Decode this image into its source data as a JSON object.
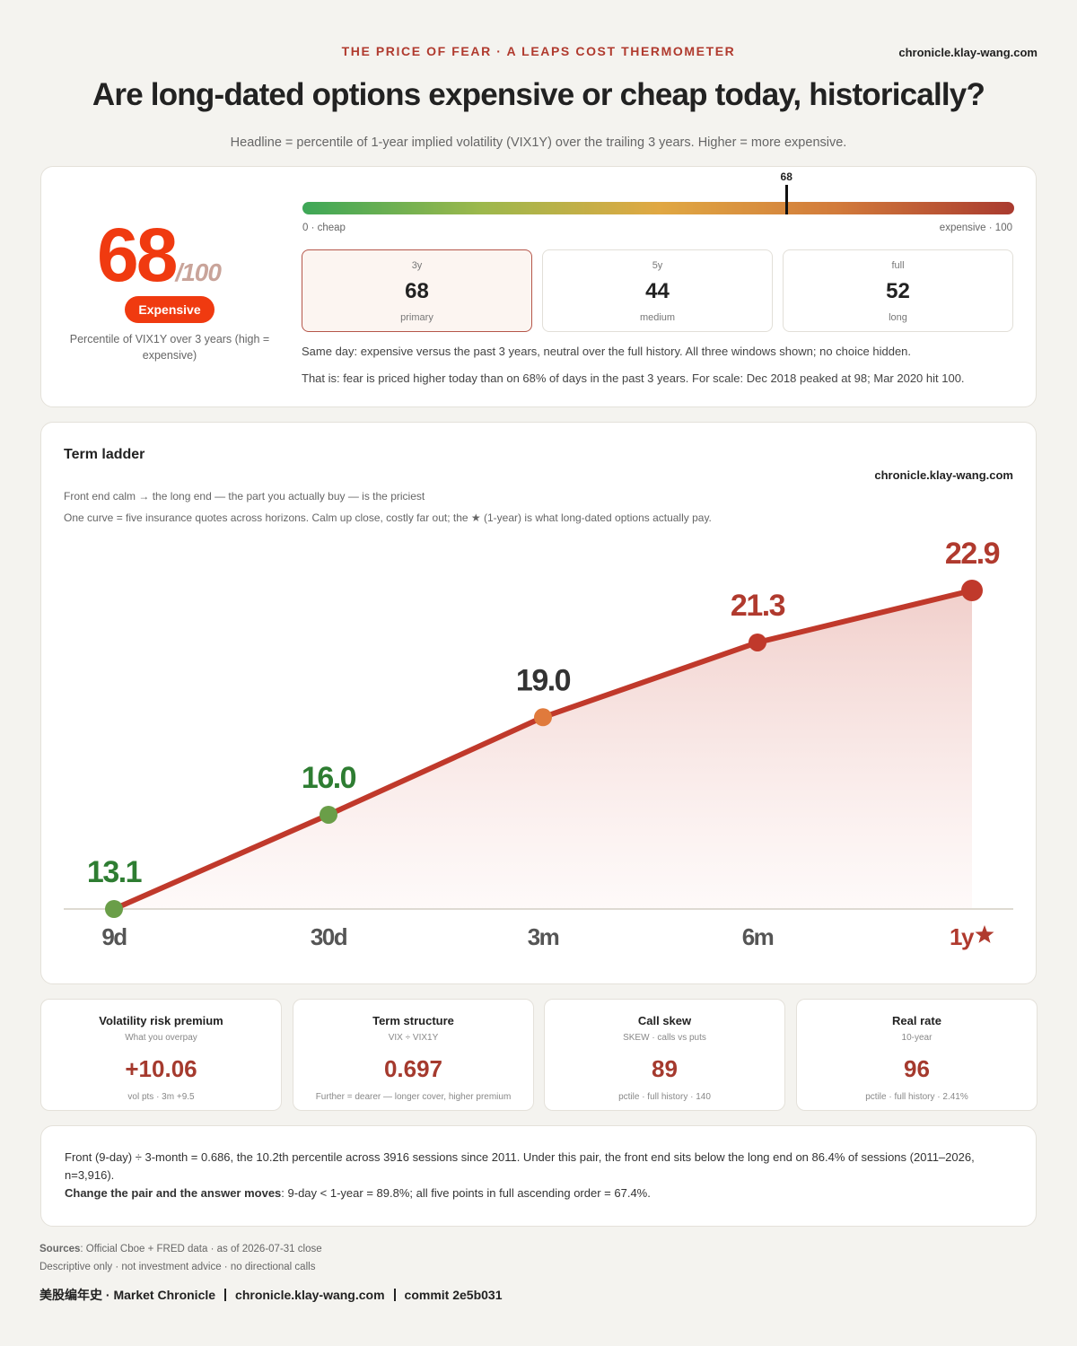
{
  "header": {
    "kicker": "THE PRICE OF FEAR · A LEAPS COST THERMOMETER",
    "site": "chronicle.klay-wang.com",
    "title": "Are long-dated options expensive or cheap today, historically?",
    "subtitle": "Headline = percentile of 1-year implied volatility (VIX1Y) over the trailing 3 years. Higher = more expensive."
  },
  "score": {
    "value": 68,
    "scale": "/100",
    "badge": "Expensive",
    "caption": "Percentile of VIX1Y over 3 years (high = expensive)"
  },
  "gauge": {
    "range": [
      0,
      100
    ],
    "value": 68,
    "min_label": "0 · cheap",
    "max_label": "expensive · 100",
    "colors": [
      "#3da757",
      "#9cb84c",
      "#e0a843",
      "#d27b3b",
      "#a93a2f"
    ]
  },
  "windows": [
    {
      "label": "3y",
      "value": 68,
      "note": "primary"
    },
    {
      "label": "5y",
      "value": 44,
      "note": "medium"
    },
    {
      "label": "full",
      "value": 52,
      "note": "long"
    }
  ],
  "score_notes": [
    "Same day: expensive versus the past 3 years, neutral over the full history. All three windows shown; no choice hidden.",
    "That is: fear is priced higher today than on 68% of days in the past 3 years. For scale: Dec 2018 peaked at 98; Mar 2020 hit 100."
  ],
  "chart_data": {
    "type": "line",
    "title": "Term ladder",
    "watermark": "chronicle.klay-wang.com",
    "subtitle": "Front end calm → the long end — the part you actually buy — is the priciest",
    "note": "One curve = five insurance quotes across horizons. Calm up close, costly far out; the ★ (1-year) is what long-dated options actually pay.",
    "categories": [
      "9d",
      "30d",
      "3m",
      "6m",
      "1y"
    ],
    "values": [
      13.1,
      16.0,
      19.0,
      21.3,
      22.9
    ],
    "value_labels": [
      "13.1",
      "16.0",
      "19.0",
      "21.3",
      "22.9"
    ],
    "color": "#c0392b",
    "point_colors": [
      "#6a9e48",
      "#6a9e48",
      "#e07a3c",
      "#c0392b",
      "#c0392b"
    ],
    "label_colors": [
      "#2e7d32",
      "#2e7d32",
      "#333333",
      "#b03a2e",
      "#b03a2e"
    ],
    "category_colors": [
      "#555555",
      "#555555",
      "#555555",
      "#555555",
      "#b03a2e"
    ]
  },
  "metrics": [
    {
      "title": "Volatility risk premium",
      "subtitle": "What you overpay",
      "value": "+10.06",
      "foot": "vol pts · 3m +9.5"
    },
    {
      "title": "Term structure",
      "subtitle": "VIX ÷ VIX1Y",
      "value": "0.697",
      "foot": "Further = dearer — longer cover, higher premium"
    },
    {
      "title": "Call skew",
      "subtitle": "SKEW · calls vs puts",
      "value": "89",
      "foot": "pctile · full history · 140"
    },
    {
      "title": "Real rate",
      "subtitle": "10-year",
      "value": "96",
      "foot": "pctile · full history · 2.41%"
    }
  ],
  "notes": {
    "paragraph": "Front (9-day) ÷ 3-month = 0.686, the 10.2th percentile across 3916 sessions since 2011. Under this pair, the front end sits below the long end on 86.4% of sessions (2011–2026, n=3,916).",
    "emphasis": "Change the pair and the answer moves",
    "emphasis_rest": ": 9-day < 1-year = 89.8%; all five points in full ascending order = 67.4%."
  },
  "footer": {
    "sources_label": "Sources",
    "sources": ": Official Cboe + FRED data · as of 2026-07-31 close",
    "disclaimer": "Descriptive only · not investment advice · no directional calls",
    "credits": [
      "美股编年史 · Market Chronicle",
      "chronicle.klay-wang.com",
      "commit 2e5b031"
    ]
  }
}
